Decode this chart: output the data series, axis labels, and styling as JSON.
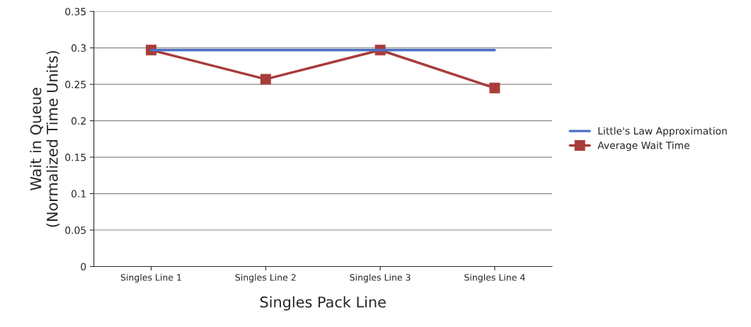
{
  "chart_data": {
    "type": "line",
    "xlabel": "Singles Pack Line",
    "ylabel": "Wait in Queue\n(Normalized Time Units)",
    "categories": [
      "Singles Line 1",
      "Singles Line 2",
      "Singles Line 3",
      "Singles Line 4"
    ],
    "series": [
      {
        "name": "Little's Law Approximation",
        "color": "#4a6fc4",
        "marker": "none",
        "values": [
          0.297,
          0.297,
          0.297,
          0.297
        ]
      },
      {
        "name": "Average Wait Time",
        "color": "#a83c3a",
        "marker": "square",
        "values": [
          0.297,
          0.257,
          0.297,
          0.245
        ]
      }
    ],
    "ylim": [
      0,
      0.35
    ],
    "yticks": [
      0,
      0.05,
      0.1,
      0.15,
      0.2,
      0.25,
      0.3,
      0.35
    ],
    "grid": "y",
    "legend": "right",
    "line_style": "solid"
  }
}
